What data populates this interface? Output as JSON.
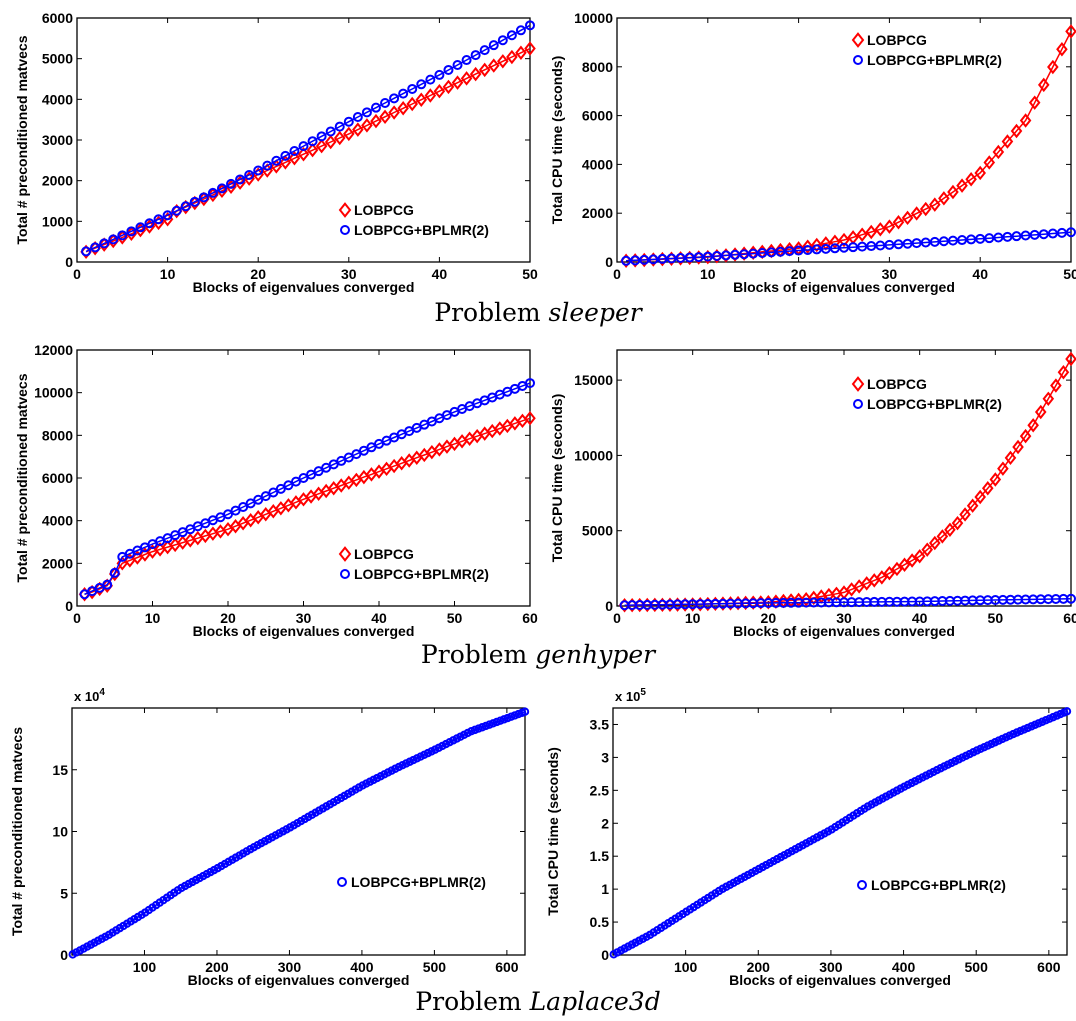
{
  "captions": [
    {
      "prefix": "Problem",
      "name": "sleeper"
    },
    {
      "prefix": "Problem",
      "name": "genhyper"
    },
    {
      "prefix": "Problem",
      "name": "Laplace3d"
    }
  ],
  "colors": {
    "LOBPCG": "#ff0000",
    "LOBPCG+BPLMR(2)": "#0000ff"
  },
  "chart_data": [
    {
      "id": "sleeper-matvecs",
      "type": "line",
      "xlabel": "Blocks of eigenvalues converged",
      "ylabel": "Total # preconditioned matvecs",
      "xlim": [
        0,
        50
      ],
      "ylim": [
        0,
        6000
      ],
      "xticks": [
        0,
        10,
        20,
        30,
        40,
        50
      ],
      "yticks": [
        0,
        1000,
        2000,
        3000,
        4000,
        5000,
        6000
      ],
      "exponent": "",
      "legend": "bottom-right",
      "series": [
        {
          "name": "LOBPCG",
          "marker": "diamond",
          "x_start": 1,
          "x_end": 50,
          "anchors": [
            [
              1,
              250
            ],
            [
              10,
              1050
            ],
            [
              11,
              1250
            ],
            [
              20,
              2150
            ],
            [
              30,
              3150
            ],
            [
              40,
              4200
            ],
            [
              50,
              5250
            ]
          ]
        },
        {
          "name": "LOBPCG+BPLMR(2)",
          "marker": "circle",
          "x_start": 1,
          "x_end": 50,
          "anchors": [
            [
              1,
              260
            ],
            [
              10,
              1150
            ],
            [
              20,
              2250
            ],
            [
              30,
              3450
            ],
            [
              40,
              4600
            ],
            [
              50,
              5820
            ]
          ]
        }
      ]
    },
    {
      "id": "sleeper-cpu",
      "type": "line",
      "xlabel": "Blocks of eigenvalues converged",
      "ylabel": "Total CPU time (seconds)",
      "xlim": [
        0,
        50
      ],
      "ylim": [
        0,
        10000
      ],
      "xticks": [
        0,
        10,
        20,
        30,
        40,
        50
      ],
      "yticks": [
        0,
        2000,
        4000,
        6000,
        8000,
        10000
      ],
      "exponent": "",
      "legend": "top-right",
      "series": [
        {
          "name": "LOBPCG",
          "marker": "diamond",
          "x_start": 1,
          "x_end": 50,
          "anchors": [
            [
              1,
              50
            ],
            [
              10,
              200
            ],
            [
              20,
              560
            ],
            [
              25,
              900
            ],
            [
              30,
              1450
            ],
            [
              35,
              2350
            ],
            [
              40,
              3650
            ],
            [
              45,
              5800
            ],
            [
              50,
              9450
            ]
          ]
        },
        {
          "name": "LOBPCG+BPLMR(2)",
          "marker": "circle",
          "x_start": 1,
          "x_end": 50,
          "anchors": [
            [
              1,
              50
            ],
            [
              10,
              220
            ],
            [
              20,
              470
            ],
            [
              30,
              700
            ],
            [
              40,
              950
            ],
            [
              50,
              1220
            ]
          ]
        }
      ]
    },
    {
      "id": "genhyper-matvecs",
      "type": "line",
      "xlabel": "Blocks of eigenvalues converged",
      "ylabel": "Total # preconditioned matvecs",
      "xlim": [
        0,
        60
      ],
      "ylim": [
        0,
        12000
      ],
      "xticks": [
        0,
        10,
        20,
        30,
        40,
        50,
        60
      ],
      "yticks": [
        0,
        2000,
        4000,
        6000,
        8000,
        10000,
        12000
      ],
      "exponent": "",
      "legend": "bottom-right",
      "series": [
        {
          "name": "LOBPCG",
          "marker": "diamond",
          "x_start": 1,
          "x_end": 60,
          "anchors": [
            [
              1,
              550
            ],
            [
              2,
              650
            ],
            [
              3,
              800
            ],
            [
              4,
              950
            ],
            [
              5,
              1500
            ],
            [
              6,
              2000
            ],
            [
              10,
              2550
            ],
            [
              20,
              3600
            ],
            [
              30,
              5000
            ],
            [
              40,
              6300
            ],
            [
              50,
              7600
            ],
            [
              60,
              8800
            ]
          ]
        },
        {
          "name": "LOBPCG+BPLMR(2)",
          "marker": "circle",
          "x_start": 1,
          "x_end": 60,
          "anchors": [
            [
              1,
              550
            ],
            [
              2,
              700
            ],
            [
              3,
              850
            ],
            [
              4,
              1000
            ],
            [
              5,
              1550
            ],
            [
              6,
              2300
            ],
            [
              10,
              2900
            ],
            [
              20,
              4300
            ],
            [
              30,
              6000
            ],
            [
              40,
              7600
            ],
            [
              50,
              9100
            ],
            [
              60,
              10450
            ]
          ]
        }
      ]
    },
    {
      "id": "genhyper-cpu",
      "type": "line",
      "xlabel": "Blocks of eigenvalues converged",
      "ylabel": "Total CPU time (seconds)",
      "xlim": [
        0,
        60
      ],
      "ylim": [
        0,
        17000
      ],
      "xticks": [
        0,
        10,
        20,
        30,
        40,
        50,
        60
      ],
      "yticks": [
        0,
        5000,
        10000,
        15000
      ],
      "exponent": "",
      "legend": "top-right",
      "series": [
        {
          "name": "LOBPCG",
          "marker": "diamond",
          "x_start": 1,
          "x_end": 60,
          "anchors": [
            [
              1,
              50
            ],
            [
              10,
              100
            ],
            [
              20,
              250
            ],
            [
              25,
              450
            ],
            [
              30,
              900
            ],
            [
              35,
              1900
            ],
            [
              40,
              3300
            ],
            [
              45,
              5500
            ],
            [
              50,
              8400
            ],
            [
              55,
              12000
            ],
            [
              60,
              16400
            ]
          ]
        },
        {
          "name": "LOBPCG+BPLMR(2)",
          "marker": "circle",
          "x_start": 1,
          "x_end": 60,
          "anchors": [
            [
              1,
              50
            ],
            [
              10,
              120
            ],
            [
              20,
              200
            ],
            [
              30,
              250
            ],
            [
              40,
              300
            ],
            [
              50,
              400
            ],
            [
              60,
              480
            ]
          ]
        }
      ]
    },
    {
      "id": "laplace3d-matvecs",
      "type": "line",
      "xlabel": "Blocks of eigenvalues converged",
      "ylabel": "Total # preconditioned matvecs",
      "xlim": [
        0,
        625
      ],
      "ylim": [
        0,
        200000
      ],
      "xticks": [
        100,
        200,
        300,
        400,
        500,
        600
      ],
      "yticks": [
        0,
        50000,
        100000,
        150000
      ],
      "ytick_labels": [
        "0",
        "5",
        "10",
        "15"
      ],
      "exponent": "x 10^4",
      "legend": "bottom-right",
      "series": [
        {
          "name": "LOBPCG+BPLMR(2)",
          "marker": "circle",
          "x_start": 1,
          "x_end": 625,
          "anchors": [
            [
              1,
              500
            ],
            [
              50,
              16000
            ],
            [
              100,
              34000
            ],
            [
              150,
              54000
            ],
            [
              200,
              70000
            ],
            [
              250,
              87000
            ],
            [
              300,
              103000
            ],
            [
              350,
              120000
            ],
            [
              400,
              137000
            ],
            [
              450,
              152000
            ],
            [
              500,
              166000
            ],
            [
              550,
              181000
            ],
            [
              625,
              197000
            ]
          ]
        }
      ]
    },
    {
      "id": "laplace3d-cpu",
      "type": "line",
      "xlabel": "Blocks of eigenvalues converged",
      "ylabel": "Total CPU time (seconds)",
      "xlim": [
        0,
        625
      ],
      "ylim": [
        0,
        375000
      ],
      "xticks": [
        100,
        200,
        300,
        400,
        500,
        600
      ],
      "yticks": [
        0,
        50000,
        100000,
        150000,
        200000,
        250000,
        300000,
        350000
      ],
      "ytick_labels": [
        "0",
        "0.5",
        "1",
        "1.5",
        "2",
        "2.5",
        "3",
        "3.5"
      ],
      "exponent": "x 10^5",
      "legend": "bottom-right",
      "series": [
        {
          "name": "LOBPCG+BPLMR(2)",
          "marker": "circle",
          "x_start": 1,
          "x_end": 625,
          "anchors": [
            [
              1,
              1000
            ],
            [
              50,
              30000
            ],
            [
              100,
              65000
            ],
            [
              150,
              100000
            ],
            [
              200,
              130000
            ],
            [
              250,
              160000
            ],
            [
              300,
              190000
            ],
            [
              350,
              225000
            ],
            [
              400,
              255000
            ],
            [
              450,
              283000
            ],
            [
              500,
              310000
            ],
            [
              550,
              335000
            ],
            [
              625,
              370000
            ]
          ]
        }
      ]
    }
  ]
}
